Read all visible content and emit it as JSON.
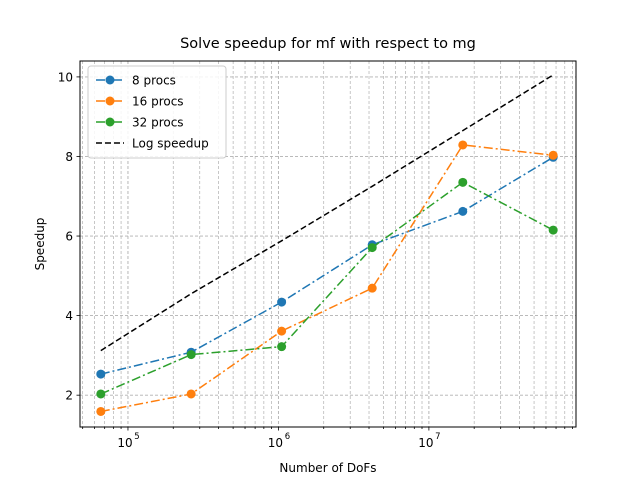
{
  "chart_data": {
    "type": "line",
    "title": "Solve speedup for mf with respect to mg",
    "xlabel": "Number of DoFs",
    "ylabel": "Speedup",
    "xscale": "log",
    "xlim": [
      48000,
      95000000
    ],
    "ylim": [
      1.2,
      10.4
    ],
    "yticks": [
      2,
      4,
      6,
      8,
      10
    ],
    "xtick_labels": [
      "10^5",
      "10^6",
      "10^7"
    ],
    "grid": "both major and minor, dashed gray",
    "legend": "top-left",
    "x": [
      66000,
      263000,
      1050000,
      4200000,
      16800000,
      67000000
    ],
    "series": [
      {
        "name": "8 procs",
        "color": "#1f77b4",
        "linestyle": "dashdot",
        "marker": "circle",
        "values": [
          2.53,
          3.08,
          4.34,
          5.78,
          6.62,
          7.98
        ]
      },
      {
        "name": "16 procs",
        "color": "#ff7f0e",
        "linestyle": "dashdot",
        "marker": "circle",
        "values": [
          1.59,
          2.03,
          3.61,
          4.69,
          8.29,
          8.03
        ]
      },
      {
        "name": "32 procs",
        "color": "#2ca02c",
        "linestyle": "dashdot",
        "marker": "circle",
        "values": [
          2.03,
          3.02,
          3.22,
          5.71,
          7.35,
          6.15
        ]
      },
      {
        "name": "Log speedup",
        "color": "#000000",
        "linestyle": "dashed",
        "marker": "none",
        "values": [
          3.12,
          4.55,
          5.88,
          7.25,
          8.65,
          10.05
        ]
      }
    ]
  }
}
